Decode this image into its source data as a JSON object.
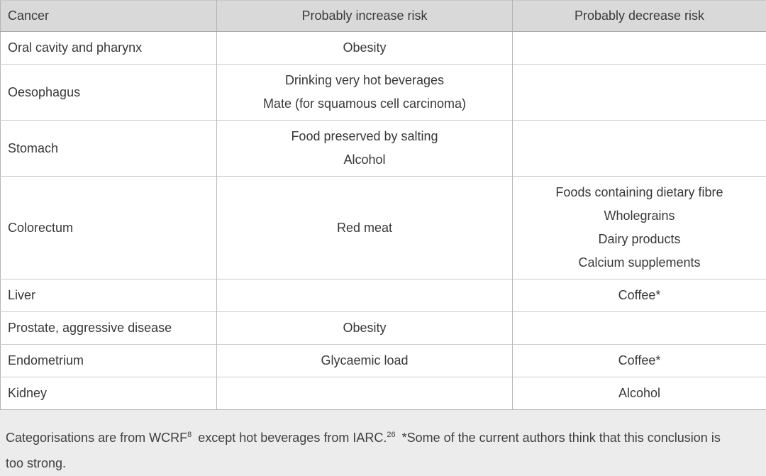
{
  "table": {
    "columns": [
      "Cancer",
      "Probably increase risk",
      "Probably decrease risk"
    ],
    "rows": [
      {
        "cancer": "Oral cavity and pharynx",
        "increase": [
          "Obesity"
        ],
        "decrease": []
      },
      {
        "cancer": "Oesophagus",
        "increase": [
          "Drinking very hot beverages",
          "Mate (for squamous cell carcinoma)"
        ],
        "decrease": []
      },
      {
        "cancer": "Stomach",
        "increase": [
          "Food preserved by salting",
          "Alcohol"
        ],
        "decrease": []
      },
      {
        "cancer": "Colorectum",
        "increase": [
          "Red meat"
        ],
        "decrease": [
          "Foods containing dietary fibre",
          "Wholegrains",
          "Dairy products",
          "Calcium supplements"
        ]
      },
      {
        "cancer": "Liver",
        "increase": [],
        "decrease": [
          "Coffee*"
        ]
      },
      {
        "cancer": "Prostate, aggressive disease",
        "increase": [
          "Obesity"
        ],
        "decrease": []
      },
      {
        "cancer": "Endometrium",
        "increase": [
          "Glycaemic load"
        ],
        "decrease": [
          "Coffee*"
        ]
      },
      {
        "cancer": "Kidney",
        "increase": [],
        "decrease": [
          "Alcohol"
        ]
      }
    ]
  },
  "footnote": {
    "part1": "Categorisations are from WCRF",
    "sup1": "8",
    "part2": "except hot beverages from IARC.",
    "sup2": "26",
    "part3": "*Some of the current authors think that this conclusion is too strong."
  },
  "colors": {
    "header_bg": "#d9d9d9",
    "page_bg": "#ececec",
    "body_bg": "#ffffff",
    "border": "#b9b9b9",
    "row_line": "#cbcbcb",
    "text": "#383838"
  }
}
